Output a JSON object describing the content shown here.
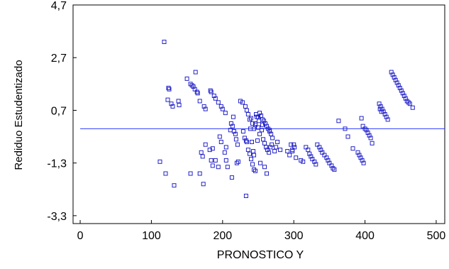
{
  "chart_data": {
    "type": "scatter",
    "xlabel": "PRONOSTICO Y",
    "ylabel": "Rediduo Estudentizado",
    "xlim": [
      -10,
      512
    ],
    "ylim": [
      -3.6,
      4.7
    ],
    "xticks": [
      0,
      100,
      200,
      300,
      400,
      500
    ],
    "yticks": [
      4.7,
      2.7,
      0.7,
      -1.3,
      -3.3
    ],
    "xtick_labels": [
      "0",
      "100",
      "200",
      "300",
      "400",
      "500"
    ],
    "ytick_labels": [
      "4,7",
      "2,7",
      "0,7",
      "-1,3",
      "-3,3"
    ],
    "reference_line": {
      "y": 0.0,
      "x_start": 0,
      "x_end": 512,
      "color": "#2b3bff"
    },
    "marker": {
      "shape": "open-square",
      "color": "#2323c8"
    },
    "grid": false,
    "points": [
      [
        118,
        3.3
      ],
      [
        112,
        -1.25
      ],
      [
        120,
        -1.7
      ],
      [
        124,
        1.55
      ],
      [
        125,
        1.5
      ],
      [
        123,
        1.1
      ],
      [
        128,
        0.95
      ],
      [
        130,
        0.85
      ],
      [
        138,
        1.05
      ],
      [
        139,
        0.9
      ],
      [
        132,
        -2.15
      ],
      [
        150,
        1.9
      ],
      [
        155,
        1.7
      ],
      [
        157,
        1.65
      ],
      [
        159,
        1.6
      ],
      [
        161,
        1.5
      ],
      [
        164,
        1.4
      ],
      [
        165,
        1.35
      ],
      [
        162,
        2.15
      ],
      [
        168,
        1.05
      ],
      [
        174,
        0.85
      ],
      [
        176,
        0.75
      ],
      [
        155,
        -1.7
      ],
      [
        168,
        -1.7
      ],
      [
        170,
        -0.9
      ],
      [
        172,
        -1.05
      ],
      [
        176,
        -0.6
      ],
      [
        173,
        -2.1
      ],
      [
        183,
        1.45
      ],
      [
        184,
        1.4
      ],
      [
        188,
        1.25
      ],
      [
        190,
        1.15
      ],
      [
        194,
        1.0
      ],
      [
        198,
        0.85
      ],
      [
        200,
        0.75
      ],
      [
        204,
        0.6
      ],
      [
        182,
        -0.8
      ],
      [
        186,
        -0.75
      ],
      [
        184,
        -1.2
      ],
      [
        186,
        -1.4
      ],
      [
        190,
        -1.2
      ],
      [
        194,
        -1.45
      ],
      [
        196,
        -0.3
      ],
      [
        198,
        -0.5
      ],
      [
        203,
        -0.9
      ],
      [
        205,
        -0.7
      ],
      [
        205,
        -1.2
      ],
      [
        207,
        -1.45
      ],
      [
        211,
        -0.05
      ],
      [
        212,
        0.2
      ],
      [
        214,
        0.1
      ],
      [
        216,
        -0.1
      ],
      [
        218,
        -0.2
      ],
      [
        219,
        -0.4
      ],
      [
        213,
        -1.85
      ],
      [
        215,
        0.45
      ],
      [
        220,
        -1.3
      ],
      [
        221,
        -0.6
      ],
      [
        225,
        1.05
      ],
      [
        228,
        1.0
      ],
      [
        232,
        0.85
      ],
      [
        234,
        0.7
      ],
      [
        236,
        0.55
      ],
      [
        238,
        0.35
      ],
      [
        240,
        0.4
      ],
      [
        242,
        0.2
      ],
      [
        246,
        0.15
      ],
      [
        248,
        0.45
      ],
      [
        250,
        0.05
      ],
      [
        229,
        -0.1
      ],
      [
        231,
        -0.35
      ],
      [
        234,
        -0.5
      ],
      [
        233,
        -0.45
      ],
      [
        236,
        -0.8
      ],
      [
        238,
        -0.95
      ],
      [
        240,
        -1.15
      ],
      [
        242,
        -1.35
      ],
      [
        244,
        -1.55
      ],
      [
        246,
        -1.6
      ],
      [
        243,
        -0.85
      ],
      [
        241,
        -0.5
      ],
      [
        239,
        0.0
      ],
      [
        233,
        -2.55
      ],
      [
        222,
        -1.25
      ],
      [
        250,
        0.45
      ],
      [
        252,
        0.6
      ],
      [
        254,
        0.5
      ],
      [
        256,
        0.35
      ],
      [
        258,
        0.3
      ],
      [
        260,
        0.2
      ],
      [
        262,
        0.1
      ],
      [
        264,
        0.0
      ],
      [
        266,
        -0.1
      ],
      [
        268,
        -0.2
      ],
      [
        270,
        -0.35
      ],
      [
        257,
        -0.4
      ],
      [
        259,
        -0.55
      ],
      [
        261,
        -0.7
      ],
      [
        263,
        -0.8
      ],
      [
        265,
        -0.9
      ],
      [
        267,
        -0.7
      ],
      [
        269,
        -0.6
      ],
      [
        253,
        -1.3
      ],
      [
        259,
        -1.45
      ],
      [
        262,
        -1.7
      ],
      [
        246,
        0.2
      ],
      [
        244,
        0.0
      ],
      [
        249,
        -0.45
      ],
      [
        244,
        -1.0
      ],
      [
        252,
        -0.2
      ],
      [
        255,
        -0.05
      ],
      [
        247,
        0.55
      ],
      [
        251,
        0.3
      ],
      [
        256,
        0.15
      ],
      [
        266,
        -0.05
      ],
      [
        273,
        -0.85
      ],
      [
        275,
        -0.7
      ],
      [
        277,
        -0.5
      ],
      [
        281,
        -0.8
      ],
      [
        291,
        -0.85
      ],
      [
        294,
        -1.0
      ],
      [
        296,
        -0.6
      ],
      [
        298,
        -0.8
      ],
      [
        300,
        -0.6
      ],
      [
        298,
        -0.85
      ],
      [
        301,
        -0.7
      ],
      [
        303,
        -1.1
      ],
      [
        310,
        -1.2
      ],
      [
        313,
        -1.25
      ],
      [
        317,
        -0.7
      ],
      [
        320,
        -0.8
      ],
      [
        322,
        -0.95
      ],
      [
        324,
        -1.05
      ],
      [
        326,
        -1.15
      ],
      [
        329,
        -1.25
      ],
      [
        331,
        -1.35
      ],
      [
        333,
        -0.6
      ],
      [
        336,
        -0.7
      ],
      [
        338,
        -0.8
      ],
      [
        340,
        -0.9
      ],
      [
        343,
        -1.0
      ],
      [
        346,
        -1.1
      ],
      [
        348,
        -1.2
      ],
      [
        350,
        -1.3
      ],
      [
        353,
        -1.4
      ],
      [
        355,
        -1.5
      ],
      [
        357,
        -1.55
      ],
      [
        363,
        0.3
      ],
      [
        372,
        0.0
      ],
      [
        376,
        -0.3
      ],
      [
        383,
        -0.75
      ],
      [
        390,
        -0.9
      ],
      [
        392,
        -1.0
      ],
      [
        394,
        -1.1
      ],
      [
        396,
        -1.2
      ],
      [
        398,
        -1.3
      ],
      [
        395,
        0.4
      ],
      [
        397,
        0.1
      ],
      [
        400,
        0.0
      ],
      [
        402,
        -0.05
      ],
      [
        404,
        -0.15
      ],
      [
        406,
        -0.25
      ],
      [
        408,
        -0.35
      ],
      [
        410,
        -0.55
      ],
      [
        420,
        0.95
      ],
      [
        422,
        0.85
      ],
      [
        424,
        0.75
      ],
      [
        426,
        0.65
      ],
      [
        428,
        0.55
      ],
      [
        430,
        0.45
      ],
      [
        432,
        0.35
      ],
      [
        421,
        0.75
      ],
      [
        423,
        0.65
      ],
      [
        437,
        2.15
      ],
      [
        439,
        2.05
      ],
      [
        441,
        1.95
      ],
      [
        443,
        1.85
      ],
      [
        445,
        1.75
      ],
      [
        447,
        1.65
      ],
      [
        449,
        1.55
      ],
      [
        451,
        1.45
      ],
      [
        453,
        1.35
      ],
      [
        455,
        1.25
      ],
      [
        457,
        1.15
      ],
      [
        459,
        1.05
      ],
      [
        461,
        1.0
      ],
      [
        463,
        0.95
      ],
      [
        467,
        0.8
      ]
    ]
  }
}
